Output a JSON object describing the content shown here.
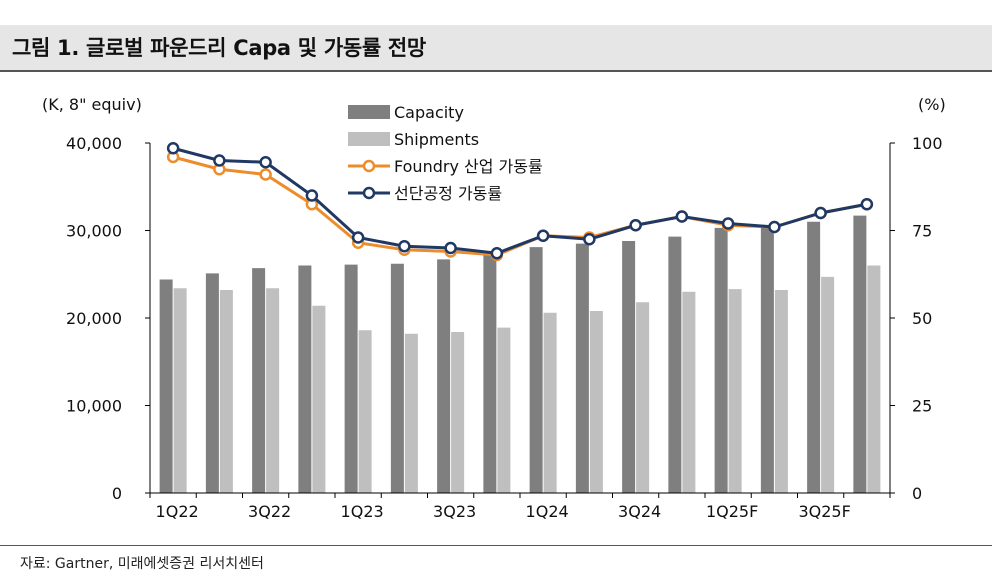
{
  "title": "그림 1. 글로벌 파운드리 Capa 및 가동률 전망",
  "source": "자료: Gartner, 미래에셋증권 리서치센터",
  "colors": {
    "capacity": "#7f7f7f",
    "shipments": "#bfbfbf",
    "foundry": "#ed8c2b",
    "leading": "#1f3864",
    "axis": "#000000"
  },
  "chart_data": {
    "type": "bar+line",
    "left_axis_unit": "(K, 8\" equiv)",
    "right_axis_unit": "(%)",
    "left_ylim": [
      0,
      40000
    ],
    "right_ylim": [
      0,
      100
    ],
    "left_ticks": [
      "0",
      "10,000",
      "20,000",
      "30,000",
      "40,000"
    ],
    "right_ticks": [
      "0",
      "25",
      "50",
      "75",
      "100"
    ],
    "categories": [
      "1Q22",
      "2Q22",
      "3Q22",
      "4Q22",
      "1Q23",
      "2Q23",
      "3Q23",
      "4Q23",
      "1Q24",
      "2Q24",
      "3Q24",
      "4Q24",
      "1Q25F",
      "2Q25F",
      "3Q25F",
      "4Q25F"
    ],
    "x_tick_labels": [
      "1Q22",
      "3Q22",
      "1Q23",
      "3Q23",
      "1Q24",
      "3Q24",
      "1Q25F",
      "3Q25F"
    ],
    "series": [
      {
        "name": "Capacity",
        "type": "bar",
        "axis": "left",
        "values": [
          24400,
          25100,
          25700,
          26000,
          26100,
          26200,
          26700,
          27300,
          28100,
          28500,
          28800,
          29300,
          30300,
          30300,
          31000,
          31700
        ]
      },
      {
        "name": "Shipments",
        "type": "bar",
        "axis": "left",
        "values": [
          23400,
          23200,
          23400,
          21400,
          18600,
          18200,
          18400,
          18900,
          20600,
          20800,
          21800,
          23000,
          23300,
          23200,
          24700,
          26000
        ]
      },
      {
        "name": "Foundry 산업 가동률",
        "type": "line",
        "axis": "right",
        "values": [
          96,
          92.5,
          91,
          82.5,
          71.5,
          69.5,
          69,
          68,
          73.5,
          73,
          76.5,
          79,
          76.5,
          76,
          80,
          82.5
        ]
      },
      {
        "name": "선단공정 가동률",
        "type": "line",
        "axis": "right",
        "values": [
          98.5,
          95,
          94.5,
          85,
          73,
          70.5,
          70,
          68.5,
          73.5,
          72.5,
          76.5,
          79,
          77,
          76,
          80,
          82.5
        ]
      }
    ]
  }
}
